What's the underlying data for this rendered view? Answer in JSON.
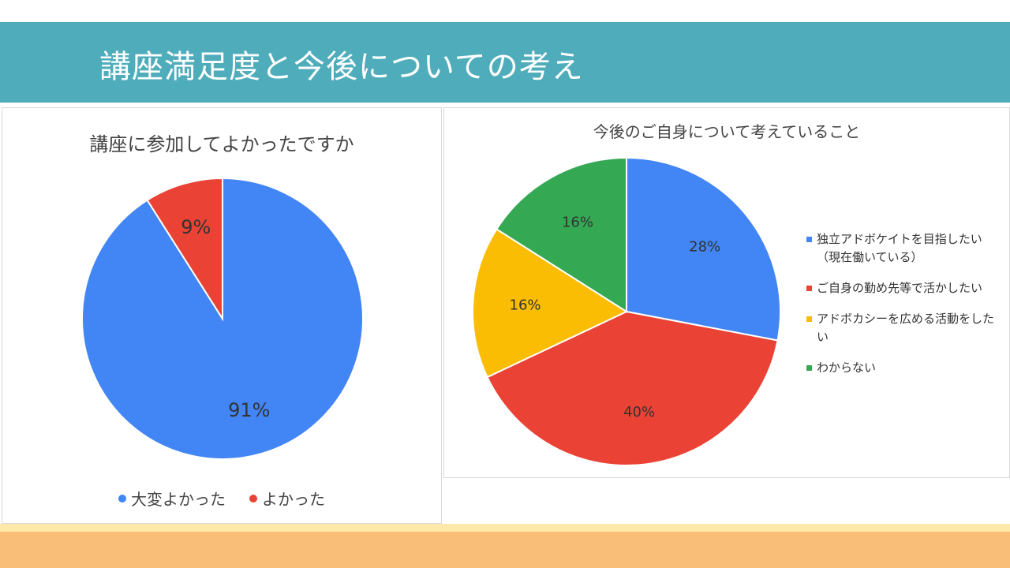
{
  "page": {
    "title": "講座満足度と今後についての考え",
    "colors": {
      "header": "#4fadbb",
      "bottom_cream": "#fde9a8",
      "bottom_orange": "#f9bf78"
    }
  },
  "chart_data": [
    {
      "type": "pie",
      "title": "講座に参加してよかったですか",
      "categories": [
        "大変よかった",
        "よかった"
      ],
      "values": [
        91,
        9
      ],
      "labels": [
        "91%",
        "9%"
      ],
      "colors": [
        "#4285f4",
        "#ea4335"
      ],
      "legend": "bottom"
    },
    {
      "type": "pie",
      "title": "今後のご自身について考えていること",
      "categories": [
        "独立アドボケイトを目指したい（現在働いている）",
        "ご自身の勤め先等で活かしたい",
        "アドボカシーを広める活動をしたい",
        "わからない"
      ],
      "values": [
        28,
        40,
        16,
        16
      ],
      "labels": [
        "28%",
        "40%",
        "16%",
        "16%"
      ],
      "colors": [
        "#4285f4",
        "#ea4335",
        "#fbbc04",
        "#34a853"
      ],
      "legend": "right"
    }
  ]
}
